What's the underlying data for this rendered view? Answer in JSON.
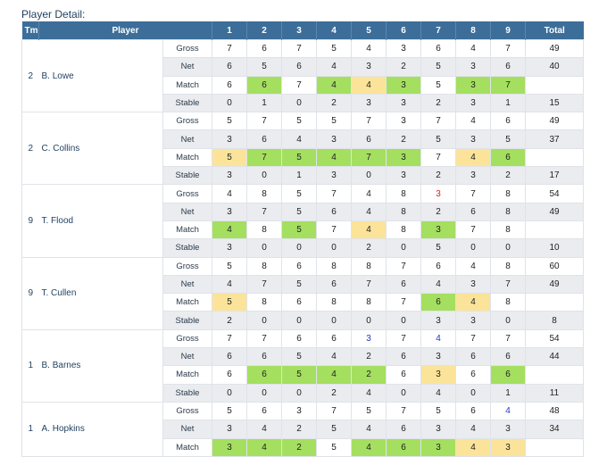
{
  "page": {
    "heading": "Player Detail:"
  },
  "columns": {
    "tm": "Tm",
    "player": "Player",
    "holes": [
      "1",
      "2",
      "3",
      "4",
      "5",
      "6",
      "7",
      "8",
      "9"
    ],
    "total": "Total"
  },
  "colors": {
    "header": "#3c6e99",
    "green": "#a4df5f",
    "yellow": "#fbe49a",
    "red": "#e02020",
    "blue": "#2238c8",
    "alt_row": "#eaecef"
  },
  "players": [
    {
      "tm": "2",
      "name": "B. Lowe",
      "rows": [
        {
          "type": "Gross",
          "vals": [
            "7",
            "6",
            "7",
            "5",
            "4",
            "3",
            "6",
            "4",
            "7"
          ],
          "total": "49",
          "marks": [
            "",
            "",
            "",
            "",
            "",
            "",
            "",
            "",
            ""
          ]
        },
        {
          "type": "Net",
          "vals": [
            "6",
            "5",
            "6",
            "4",
            "3",
            "2",
            "5",
            "3",
            "6"
          ],
          "total": "40",
          "marks": [
            "",
            "",
            "",
            "",
            "",
            "",
            "",
            "",
            ""
          ]
        },
        {
          "type": "Match",
          "vals": [
            "6",
            "6",
            "7",
            "4",
            "4",
            "3",
            "5",
            "3",
            "7"
          ],
          "total": "",
          "marks": [
            "",
            "g",
            "",
            "g",
            "y",
            "g",
            "",
            "g",
            "g"
          ]
        },
        {
          "type": "Stable",
          "vals": [
            "0",
            "1",
            "0",
            "2",
            "3",
            "3",
            "2",
            "3",
            "1"
          ],
          "total": "15",
          "marks": [
            "",
            "",
            "",
            "",
            "",
            "",
            "",
            "",
            ""
          ]
        }
      ]
    },
    {
      "tm": "2",
      "name": "C. Collins",
      "rows": [
        {
          "type": "Gross",
          "vals": [
            "5",
            "7",
            "5",
            "5",
            "7",
            "3",
            "7",
            "4",
            "6"
          ],
          "total": "49",
          "marks": [
            "",
            "",
            "",
            "",
            "",
            "",
            "",
            "",
            ""
          ]
        },
        {
          "type": "Net",
          "vals": [
            "3",
            "6",
            "4",
            "3",
            "6",
            "2",
            "5",
            "3",
            "5"
          ],
          "total": "37",
          "marks": [
            "",
            "",
            "",
            "",
            "",
            "",
            "",
            "",
            ""
          ]
        },
        {
          "type": "Match",
          "vals": [
            "5",
            "7",
            "5",
            "4",
            "7",
            "3",
            "7",
            "4",
            "6"
          ],
          "total": "",
          "marks": [
            "y",
            "g",
            "g",
            "g",
            "g",
            "g",
            "",
            "y",
            "g"
          ]
        },
        {
          "type": "Stable",
          "vals": [
            "3",
            "0",
            "1",
            "3",
            "0",
            "3",
            "2",
            "3",
            "2"
          ],
          "total": "17",
          "marks": [
            "",
            "",
            "",
            "",
            "",
            "",
            "",
            "",
            ""
          ]
        }
      ]
    },
    {
      "tm": "9",
      "name": "T. Flood",
      "rows": [
        {
          "type": "Gross",
          "vals": [
            "4",
            "8",
            "5",
            "7",
            "4",
            "8",
            "3",
            "7",
            "8"
          ],
          "total": "54",
          "marks": [
            "",
            "",
            "",
            "",
            "",
            "",
            "r",
            "",
            ""
          ]
        },
        {
          "type": "Net",
          "vals": [
            "3",
            "7",
            "5",
            "6",
            "4",
            "8",
            "2",
            "6",
            "8"
          ],
          "total": "49",
          "marks": [
            "",
            "",
            "",
            "",
            "",
            "",
            "",
            "",
            ""
          ]
        },
        {
          "type": "Match",
          "vals": [
            "4",
            "8",
            "5",
            "7",
            "4",
            "8",
            "3",
            "7",
            "8"
          ],
          "total": "",
          "marks": [
            "g",
            "",
            "g",
            "",
            "y",
            "",
            "g",
            "",
            ""
          ]
        },
        {
          "type": "Stable",
          "vals": [
            "3",
            "0",
            "0",
            "0",
            "2",
            "0",
            "5",
            "0",
            "0"
          ],
          "total": "10",
          "marks": [
            "",
            "",
            "",
            "",
            "",
            "",
            "",
            "",
            ""
          ]
        }
      ]
    },
    {
      "tm": "9",
      "name": "T. Cullen",
      "rows": [
        {
          "type": "Gross",
          "vals": [
            "5",
            "8",
            "6",
            "8",
            "8",
            "7",
            "6",
            "4",
            "8"
          ],
          "total": "60",
          "marks": [
            "",
            "",
            "",
            "",
            "",
            "",
            "",
            "",
            ""
          ]
        },
        {
          "type": "Net",
          "vals": [
            "4",
            "7",
            "5",
            "6",
            "7",
            "6",
            "4",
            "3",
            "7"
          ],
          "total": "49",
          "marks": [
            "",
            "",
            "",
            "",
            "",
            "",
            "",
            "",
            ""
          ]
        },
        {
          "type": "Match",
          "vals": [
            "5",
            "8",
            "6",
            "8",
            "8",
            "7",
            "6",
            "4",
            "8"
          ],
          "total": "",
          "marks": [
            "y",
            "",
            "",
            "",
            "",
            "",
            "g",
            "y",
            ""
          ]
        },
        {
          "type": "Stable",
          "vals": [
            "2",
            "0",
            "0",
            "0",
            "0",
            "0",
            "3",
            "3",
            "0"
          ],
          "total": "8",
          "marks": [
            "",
            "",
            "",
            "",
            "",
            "",
            "",
            "",
            ""
          ]
        }
      ]
    },
    {
      "tm": "1",
      "name": "B. Barnes",
      "rows": [
        {
          "type": "Gross",
          "vals": [
            "7",
            "7",
            "6",
            "6",
            "3",
            "7",
            "4",
            "7",
            "7"
          ],
          "total": "54",
          "marks": [
            "",
            "",
            "",
            "",
            "b",
            "",
            "b",
            "",
            ""
          ]
        },
        {
          "type": "Net",
          "vals": [
            "6",
            "6",
            "5",
            "4",
            "2",
            "6",
            "3",
            "6",
            "6"
          ],
          "total": "44",
          "marks": [
            "",
            "",
            "",
            "",
            "",
            "",
            "",
            "",
            ""
          ]
        },
        {
          "type": "Match",
          "vals": [
            "6",
            "6",
            "5",
            "4",
            "2",
            "6",
            "3",
            "6",
            "6"
          ],
          "total": "",
          "marks": [
            "",
            "g",
            "g",
            "g",
            "g",
            "",
            "y",
            "",
            "g"
          ]
        },
        {
          "type": "Stable",
          "vals": [
            "0",
            "0",
            "0",
            "2",
            "4",
            "0",
            "4",
            "0",
            "1"
          ],
          "total": "11",
          "marks": [
            "",
            "",
            "",
            "",
            "",
            "",
            "",
            "",
            ""
          ]
        }
      ]
    },
    {
      "tm": "1",
      "name": "A. Hopkins",
      "rows": [
        {
          "type": "Gross",
          "vals": [
            "5",
            "6",
            "3",
            "7",
            "5",
            "7",
            "5",
            "6",
            "4"
          ],
          "total": "48",
          "marks": [
            "",
            "",
            "",
            "",
            "",
            "",
            "",
            "",
            "b"
          ]
        },
        {
          "type": "Net",
          "vals": [
            "3",
            "4",
            "2",
            "5",
            "4",
            "6",
            "3",
            "4",
            "3"
          ],
          "total": "34",
          "marks": [
            "",
            "",
            "",
            "",
            "",
            "",
            "",
            "",
            ""
          ]
        },
        {
          "type": "Match",
          "vals": [
            "3",
            "4",
            "2",
            "5",
            "4",
            "6",
            "3",
            "4",
            "3"
          ],
          "total": "",
          "marks": [
            "g",
            "g",
            "g",
            "",
            "g",
            "g",
            "g",
            "y",
            "y"
          ]
        }
      ]
    }
  ]
}
